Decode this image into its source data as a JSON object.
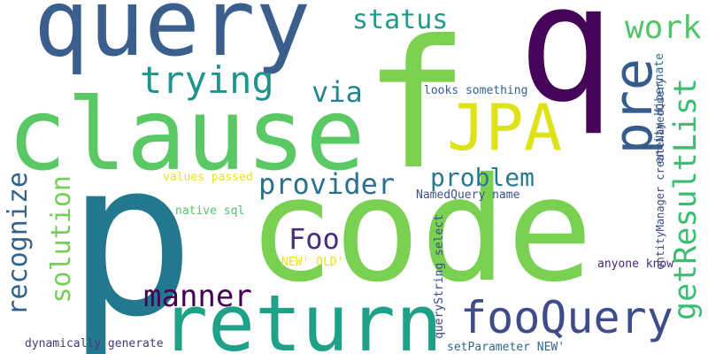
{
  "word_cloud": {
    "words": [
      {
        "key": "query",
        "text": "query",
        "color": "#3b5f8c"
      },
      {
        "key": "q",
        "text": "q",
        "color": "#45065a"
      },
      {
        "key": "f",
        "text": "f",
        "color": "#7cd250"
      },
      {
        "key": "clause",
        "text": "clause",
        "color": "#5ac864"
      },
      {
        "key": "jpa",
        "text": "JPA",
        "color": "#dde318"
      },
      {
        "key": "pre",
        "text": "pre",
        "color": "#365c8d"
      },
      {
        "key": "p",
        "text": "p",
        "color": "#23788e"
      },
      {
        "key": "code",
        "text": "code",
        "color": "#7ad151"
      },
      {
        "key": "return",
        "text": "return",
        "color": "#1fa187"
      },
      {
        "key": "fooquery",
        "text": "fooQuery",
        "color": "#3e4c8a"
      },
      {
        "key": "status",
        "text": "status",
        "color": "#1e9c89"
      },
      {
        "key": "work",
        "text": "work",
        "color": "#52c569"
      },
      {
        "key": "trying",
        "text": "trying",
        "color": "#1f948c"
      },
      {
        "key": "via",
        "text": "via",
        "color": "#25858e"
      },
      {
        "key": "getresultlist",
        "text": "getResultList",
        "color": "#3dbc74"
      },
      {
        "key": "provider",
        "text": "provider",
        "color": "#2c718e"
      },
      {
        "key": "problem",
        "text": "problem",
        "color": "#2a788e"
      },
      {
        "key": "solution",
        "text": "solution",
        "color": "#73d056"
      },
      {
        "key": "recognize",
        "text": "recognize",
        "color": "#33638d"
      },
      {
        "key": "foo",
        "text": "Foo",
        "color": "#472d7b"
      },
      {
        "key": "manner",
        "text": "manner",
        "color": "#440154"
      },
      {
        "key": "looks_something",
        "text": "looks something",
        "color": "#355f8d"
      },
      {
        "key": "entity_hibernate",
        "text": "entity Hibernate",
        "color": "#2f6b8e"
      },
      {
        "key": "entitymanager",
        "text": "entityManager createNamedQuery",
        "color": "#3e4a89"
      },
      {
        "key": "values_passed",
        "text": "values passed",
        "color": "#e5e419"
      },
      {
        "key": "namedquery_name",
        "text": "NamedQuery name",
        "color": "#3b528b"
      },
      {
        "key": "native_sql",
        "text": "native sql",
        "color": "#50c46a"
      },
      {
        "key": "new_old",
        "text": "NEW' OLD'",
        "color": "#e7e419"
      },
      {
        "key": "querystring_select",
        "text": "queryString select",
        "color": "#3e4a89"
      },
      {
        "key": "anyone_know",
        "text": "anyone know",
        "color": "#482878"
      },
      {
        "key": "setparameter",
        "text": "setParameter NEW'",
        "color": "#31688e"
      },
      {
        "key": "dynamically_generate",
        "text": "dynamically generate",
        "color": "#453781"
      }
    ]
  }
}
